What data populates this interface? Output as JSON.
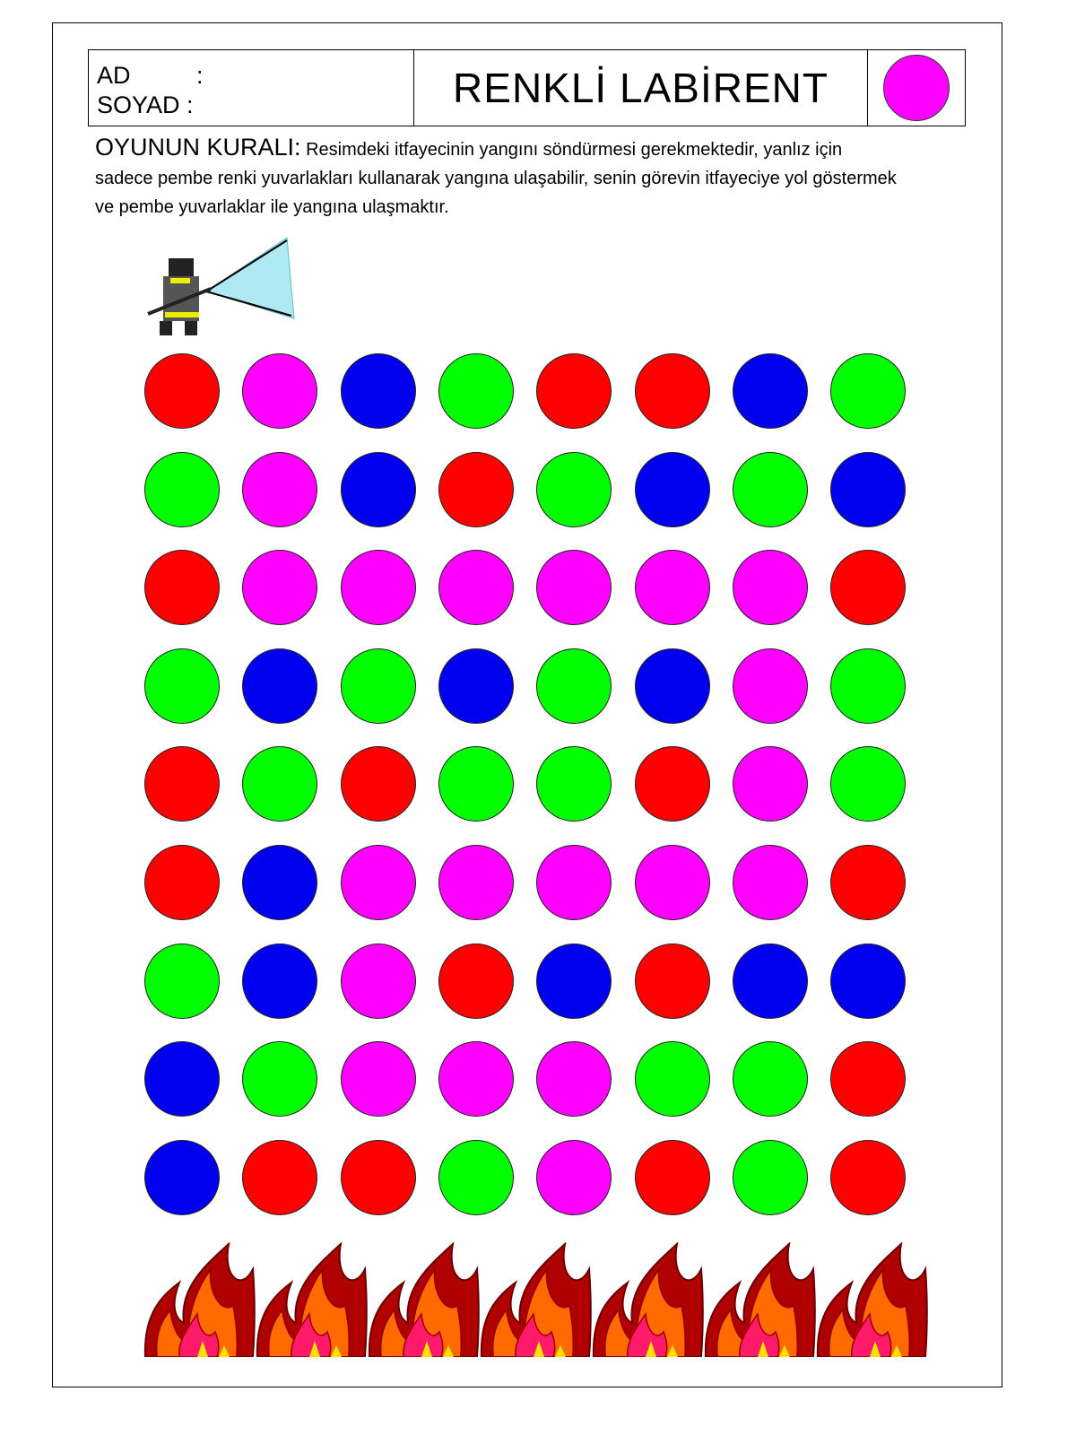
{
  "header": {
    "name_label": "AD",
    "surname_label": "SOYAD",
    "colon": ":",
    "title": "RENKLİ LABİRENT",
    "target_color": "#ff00ff"
  },
  "rules": {
    "heading": "OYUNUN KURALI:",
    "text": "Resimdeki itfayecinin yangını söndürmesi gerekmektedir, yanlız için sadece pembe renki yuvarlakları kullanarak yangına ulaşabilir, senin görevin itfayeciye yol göstermek ve pembe yuvarlaklar ile yangına ulaşmaktır."
  },
  "palette": {
    "R": "#ff0000",
    "P": "#ff00ff",
    "B": "#0000ee",
    "G": "#00ff00"
  },
  "maze": [
    [
      "R",
      "P",
      "B",
      "G",
      "R",
      "R",
      "B",
      "G"
    ],
    [
      "G",
      "P",
      "B",
      "R",
      "G",
      "B",
      "G",
      "B"
    ],
    [
      "R",
      "P",
      "P",
      "P",
      "P",
      "P",
      "P",
      "R"
    ],
    [
      "G",
      "B",
      "G",
      "B",
      "G",
      "B",
      "P",
      "G"
    ],
    [
      "R",
      "G",
      "R",
      "G",
      "G",
      "R",
      "P",
      "G"
    ],
    [
      "R",
      "B",
      "P",
      "P",
      "P",
      "P",
      "P",
      "R"
    ],
    [
      "G",
      "B",
      "P",
      "R",
      "B",
      "R",
      "B",
      "B"
    ],
    [
      "B",
      "G",
      "P",
      "P",
      "P",
      "G",
      "G",
      "R"
    ],
    [
      "B",
      "R",
      "R",
      "G",
      "P",
      "R",
      "G",
      "R"
    ]
  ],
  "icons": {
    "start": "firefighter-icon",
    "goal": "fire-icon"
  },
  "flame_count": 7
}
